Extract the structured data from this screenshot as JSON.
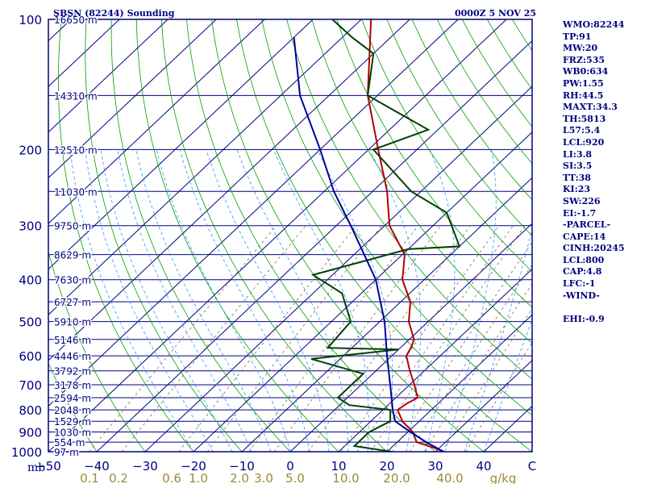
{
  "chart_data": {
    "type": "line",
    "subtype": "skew-t log-p sounding",
    "title": "SBSN (82244) Sounding",
    "datetime": "0000Z  5 NOV 25",
    "xlabel": "°C",
    "ylabel": "mb",
    "xlim": [
      -50,
      50
    ],
    "ylim": [
      1000,
      100
    ],
    "pressure_ticks": [
      {
        "label": "100",
        "p": 100
      },
      {
        "label": "200",
        "p": 200
      },
      {
        "label": "300",
        "p": 300
      },
      {
        "label": "400",
        "p": 400
      },
      {
        "label": "500",
        "p": 500
      },
      {
        "label": "600",
        "p": 600
      },
      {
        "label": "700",
        "p": 700
      },
      {
        "label": "800",
        "p": 800
      },
      {
        "label": "900",
        "p": 900
      },
      {
        "label": "1000",
        "p": 1000
      }
    ],
    "temperature_ticks": [
      {
        "label": "−50",
        "t": -50
      },
      {
        "label": "−40",
        "t": -40
      },
      {
        "label": "−30",
        "t": -30
      },
      {
        "label": "−20",
        "t": -20
      },
      {
        "label": "−10",
        "t": -10
      },
      {
        "label": "0",
        "t": 0
      },
      {
        "label": "10",
        "t": 10
      },
      {
        "label": "20",
        "t": 20
      },
      {
        "label": "30",
        "t": 30
      },
      {
        "label": "40",
        "t": 40
      },
      {
        "label": "C",
        "t": 50
      }
    ],
    "mixing_ratio_ticks": [
      {
        "label": "0.1",
        "t": -41.5
      },
      {
        "label": "0.2",
        "t": -35.5
      },
      {
        "label": "0.6",
        "t": -24.5
      },
      {
        "label": "1.0",
        "t": -19
      },
      {
        "label": "2.0",
        "t": -10.5
      },
      {
        "label": "3.0",
        "t": -5.5
      },
      {
        "label": "5.0",
        "t": 1
      },
      {
        "label": "10.0",
        "t": 11.5
      },
      {
        "label": "20.0",
        "t": 22
      },
      {
        "label": "40.0",
        "t": 33
      },
      {
        "label": "g/kg",
        "t": 44
      }
    ],
    "mixing_ratio_unit": "g/kg",
    "height_labels": [
      {
        "label": "16650 m",
        "p": 100
      },
      {
        "label": "14310 m",
        "p": 150
      },
      {
        "label": "12510 m",
        "p": 200
      },
      {
        "label": "11030 m",
        "p": 250
      },
      {
        "label": "9750 m",
        "p": 300
      },
      {
        "label": "8629 m",
        "p": 350
      },
      {
        "label": "7630 m",
        "p": 400
      },
      {
        "label": "6727 m",
        "p": 450
      },
      {
        "label": "5910 m",
        "p": 500
      },
      {
        "label": "5146 m",
        "p": 550
      },
      {
        "label": "4446 m",
        "p": 600
      },
      {
        "label": "3792 m",
        "p": 650
      },
      {
        "label": "3178 m",
        "p": 700
      },
      {
        "label": "2594 m",
        "p": 750
      },
      {
        "label": "2048 m",
        "p": 800
      },
      {
        "label": "1529 m",
        "p": 850
      },
      {
        "label": "1030 m",
        "p": 900
      },
      {
        "label": "554 m",
        "p": 950
      },
      {
        "label": "97 m",
        "p": 1000
      }
    ],
    "series": [
      {
        "name": "Temperature",
        "color": "#b40000",
        "points": [
          {
            "p": 1000,
            "t": 31.7
          },
          {
            "p": 980,
            "t": 29.0
          },
          {
            "p": 950,
            "t": 24.0
          },
          {
            "p": 900,
            "t": 21.0
          },
          {
            "p": 850,
            "t": 16.5
          },
          {
            "p": 800,
            "t": 13.0
          },
          {
            "p": 775,
            "t": 13.5
          },
          {
            "p": 750,
            "t": 14.5
          },
          {
            "p": 700,
            "t": 11.0
          },
          {
            "p": 650,
            "t": 7.0
          },
          {
            "p": 600,
            "t": 3.0
          },
          {
            "p": 570,
            "t": 2.0
          },
          {
            "p": 550,
            "t": 1.0
          },
          {
            "p": 500,
            "t": -4.0
          },
          {
            "p": 450,
            "t": -8.0
          },
          {
            "p": 400,
            "t": -14.5
          },
          {
            "p": 350,
            "t": -19.5
          },
          {
            "p": 300,
            "t": -29.0
          },
          {
            "p": 250,
            "t": -37.0
          },
          {
            "p": 200,
            "t": -48.0
          },
          {
            "p": 150,
            "t": -62.0
          },
          {
            "p": 100,
            "t": -78.0
          }
        ]
      },
      {
        "name": "Dewpoint",
        "color": "#004000",
        "points": [
          {
            "p": 1000,
            "t": 21.0
          },
          {
            "p": 970,
            "t": 12.0
          },
          {
            "p": 900,
            "t": 12.0
          },
          {
            "p": 850,
            "t": 14.0
          },
          {
            "p": 800,
            "t": 11.5
          },
          {
            "p": 780,
            "t": 2.0
          },
          {
            "p": 750,
            "t": -2.0
          },
          {
            "p": 700,
            "t": -2.0
          },
          {
            "p": 660,
            "t": -2.0
          },
          {
            "p": 610,
            "t": -16.0
          },
          {
            "p": 580,
            "t": 0.0
          },
          {
            "p": 575,
            "t": -15.0
          },
          {
            "p": 500,
            "t": -16.0
          },
          {
            "p": 430,
            "t": -24.0
          },
          {
            "p": 390,
            "t": -34.0
          },
          {
            "p": 340,
            "t": -20.0
          },
          {
            "p": 335,
            "t": -10.0
          },
          {
            "p": 280,
            "t": -20.0
          },
          {
            "p": 250,
            "t": -32.0
          },
          {
            "p": 200,
            "t": -49.0
          },
          {
            "p": 180,
            "t": -42.0
          },
          {
            "p": 150,
            "t": -62.0
          },
          {
            "p": 120,
            "t": -70.0
          },
          {
            "p": 110,
            "t": -78.0
          },
          {
            "p": 100,
            "t": -86.0
          }
        ]
      },
      {
        "name": "Parcel",
        "color": "#0000a0",
        "points": [
          {
            "p": 1000,
            "t": 31.7
          },
          {
            "p": 950,
            "t": 26.0
          },
          {
            "p": 900,
            "t": 20.5
          },
          {
            "p": 850,
            "t": 15.0
          },
          {
            "p": 800,
            "t": 12.0
          },
          {
            "p": 700,
            "t": 6.0
          },
          {
            "p": 600,
            "t": -1.0
          },
          {
            "p": 500,
            "t": -9.0
          },
          {
            "p": 400,
            "t": -20.0
          },
          {
            "p": 300,
            "t": -37.0
          },
          {
            "p": 250,
            "t": -48.0
          },
          {
            "p": 200,
            "t": -60.0
          },
          {
            "p": 150,
            "t": -76.0
          },
          {
            "p": 110,
            "t": -90.0
          }
        ]
      }
    ]
  },
  "indices": [
    "WMO:82244",
    "TP:91",
    "MW:20",
    "FRZ:535",
    "WB0:634",
    "PW:1.55",
    "RH:44.5",
    "MAXT:34.3",
    "TH:5813",
    "L57:5.4",
    "LCL:920",
    "LI:3.8",
    "SI:3.5",
    "TT:38",
    "KI:23",
    "SW:226",
    "EI:-1.7",
    "-PARCEL-",
    "CAPE:14",
    "CINH:20245",
    "LCL:800",
    "CAP:4.8",
    "LFC:-1",
    "-WIND-",
    "",
    "EHI:-0.9"
  ],
  "colors": {
    "isobar": "#000080",
    "isotherm": "#000080",
    "dry_adiabat": "#00a000",
    "moist_adiabat": "#3399ff",
    "mixing_ratio": "#7a6a4a",
    "axis_label": "#000080",
    "mixing_label": "#9b8a3a"
  }
}
